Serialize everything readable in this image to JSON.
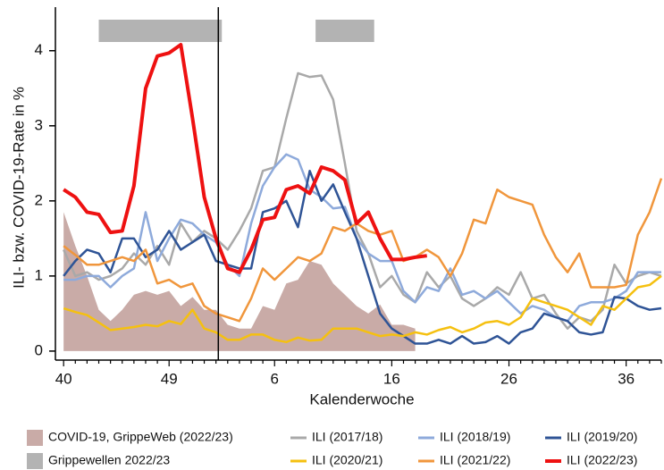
{
  "chart_data": {
    "type": "line",
    "y_label": "ILI- bzw. COVID-19-Rate in %",
    "x_label": "Kalenderwoche",
    "categories": [
      "40",
      null,
      null,
      null,
      null,
      null,
      null,
      null,
      null,
      "49",
      null,
      null,
      null,
      null,
      null,
      null,
      null,
      null,
      "6",
      null,
      null,
      null,
      null,
      null,
      null,
      null,
      null,
      null,
      "16",
      null,
      null,
      null,
      null,
      null,
      null,
      null,
      null,
      null,
      "26",
      null,
      null,
      null,
      null,
      null,
      null,
      null,
      null,
      null,
      "36",
      null,
      null,
      null
    ],
    "ylim": [
      -0.12,
      4.58
    ],
    "yticks": [
      0,
      1,
      2,
      3,
      4
    ],
    "year_boundary": 13.2,
    "flu_waves": {
      "name": "Grippewellen 2022/23",
      "color": "#b3b3b3",
      "spans": [
        [
          3,
          13.5
        ],
        [
          21.5,
          26.5
        ]
      ]
    },
    "series": [
      {
        "name": "COVID-19, GrippeWeb (2022/23)",
        "color": "#c9aba7",
        "kind": "area",
        "values": [
          1.85,
          1.4,
          1.0,
          0.55,
          0.4,
          0.55,
          0.75,
          0.8,
          0.75,
          0.8,
          0.6,
          0.72,
          0.55,
          0.55,
          0.35,
          0.3,
          0.3,
          0.6,
          0.55,
          0.9,
          0.95,
          1.2,
          1.15,
          0.9,
          0.75,
          0.6,
          0.5,
          0.62,
          0.35,
          0.35,
          0.3,
          null,
          null,
          null,
          null,
          null,
          null,
          null,
          null,
          null,
          null,
          null,
          null,
          null,
          null,
          null,
          null,
          null,
          null,
          null,
          null,
          null
        ]
      },
      {
        "name": "ILI (2017/18)",
        "color": "#a9a9a9",
        "values": [
          1.35,
          1.0,
          1.05,
          0.95,
          1.0,
          1.1,
          1.3,
          1.15,
          1.4,
          1.15,
          1.7,
          1.45,
          1.6,
          1.5,
          1.35,
          1.6,
          1.9,
          2.4,
          2.45,
          3.1,
          3.7,
          3.65,
          3.67,
          3.35,
          2.5,
          1.6,
          1.3,
          0.85,
          1.0,
          0.75,
          0.65,
          1.05,
          0.85,
          1.0,
          0.7,
          0.6,
          0.7,
          0.85,
          0.75,
          1.05,
          0.7,
          0.75,
          0.5,
          0.3,
          0.45,
          0.4,
          0.55,
          1.15,
          0.9,
          1.0,
          1.05,
          1.0
        ]
      },
      {
        "name": "ILI (2018/19)",
        "color": "#8eaadb",
        "values": [
          0.95,
          0.95,
          1.0,
          1.0,
          0.85,
          1.0,
          1.1,
          1.85,
          1.2,
          1.5,
          1.75,
          1.7,
          1.55,
          1.45,
          1.15,
          1.0,
          1.7,
          2.2,
          2.45,
          2.62,
          2.55,
          2.15,
          2.05,
          1.9,
          1.92,
          1.5,
          1.3,
          1.2,
          1.2,
          0.8,
          0.65,
          0.85,
          0.8,
          1.1,
          0.75,
          0.8,
          0.7,
          0.8,
          0.65,
          0.5,
          0.6,
          0.55,
          0.45,
          0.4,
          0.6,
          0.65,
          0.65,
          0.7,
          0.8,
          1.05,
          1.05,
          1.05
        ]
      },
      {
        "name": "ILI (2019/20)",
        "color": "#2f5496",
        "values": [
          1.0,
          1.2,
          1.35,
          1.3,
          1.05,
          1.5,
          1.5,
          1.25,
          1.35,
          1.6,
          1.35,
          1.45,
          1.55,
          1.2,
          1.15,
          1.1,
          1.1,
          1.85,
          1.9,
          2.0,
          1.65,
          2.4,
          2.0,
          2.22,
          1.85,
          1.5,
          1.0,
          0.5,
          0.3,
          0.2,
          0.1,
          0.1,
          0.15,
          0.1,
          0.2,
          0.1,
          0.12,
          0.2,
          0.1,
          0.25,
          0.3,
          0.5,
          0.45,
          0.4,
          0.25,
          0.22,
          0.25,
          0.72,
          0.7,
          0.6,
          0.55,
          0.57
        ]
      },
      {
        "name": "ILI (2020/21)",
        "color": "#f5c010",
        "values": [
          0.57,
          0.52,
          0.48,
          0.38,
          0.28,
          0.3,
          0.32,
          0.35,
          0.33,
          0.4,
          0.36,
          0.55,
          0.3,
          0.25,
          0.15,
          0.15,
          0.22,
          0.22,
          0.15,
          0.12,
          0.18,
          0.14,
          0.15,
          0.3,
          0.3,
          0.3,
          0.25,
          0.2,
          0.22,
          0.2,
          0.25,
          0.22,
          0.28,
          0.32,
          0.25,
          0.3,
          0.38,
          0.4,
          0.35,
          0.45,
          0.7,
          0.65,
          0.6,
          0.55,
          0.45,
          0.35,
          0.6,
          0.55,
          0.7,
          0.85,
          0.88,
          1.0
        ]
      },
      {
        "name": "ILI (2021/22)",
        "color": "#f0963c",
        "values": [
          1.4,
          1.28,
          1.15,
          1.15,
          1.2,
          1.25,
          1.2,
          1.35,
          0.9,
          0.95,
          0.85,
          0.9,
          0.6,
          0.5,
          0.45,
          0.4,
          0.7,
          1.1,
          0.95,
          1.1,
          1.25,
          1.2,
          1.3,
          1.65,
          1.6,
          1.7,
          1.6,
          1.55,
          1.6,
          1.2,
          1.25,
          1.35,
          1.25,
          1.0,
          1.3,
          1.75,
          1.7,
          2.15,
          2.05,
          2.0,
          1.95,
          1.55,
          1.25,
          1.05,
          1.3,
          0.85,
          0.85,
          0.85,
          0.88,
          1.55,
          1.85,
          2.3
        ]
      },
      {
        "name": "ILI (2022/23)",
        "color": "#ee1111",
        "width": 4,
        "values": [
          2.15,
          2.05,
          1.85,
          1.82,
          1.58,
          1.6,
          2.2,
          3.5,
          3.93,
          3.97,
          4.08,
          3.1,
          2.05,
          1.5,
          1.1,
          1.05,
          1.35,
          1.75,
          1.78,
          2.15,
          2.2,
          2.1,
          2.45,
          2.4,
          2.28,
          1.7,
          1.85,
          1.5,
          1.22,
          1.22,
          1.25,
          1.27,
          null,
          null,
          null,
          null,
          null,
          null,
          null,
          null,
          null,
          null,
          null,
          null,
          null,
          null,
          null,
          null,
          null,
          null,
          null,
          null
        ]
      }
    ]
  }
}
